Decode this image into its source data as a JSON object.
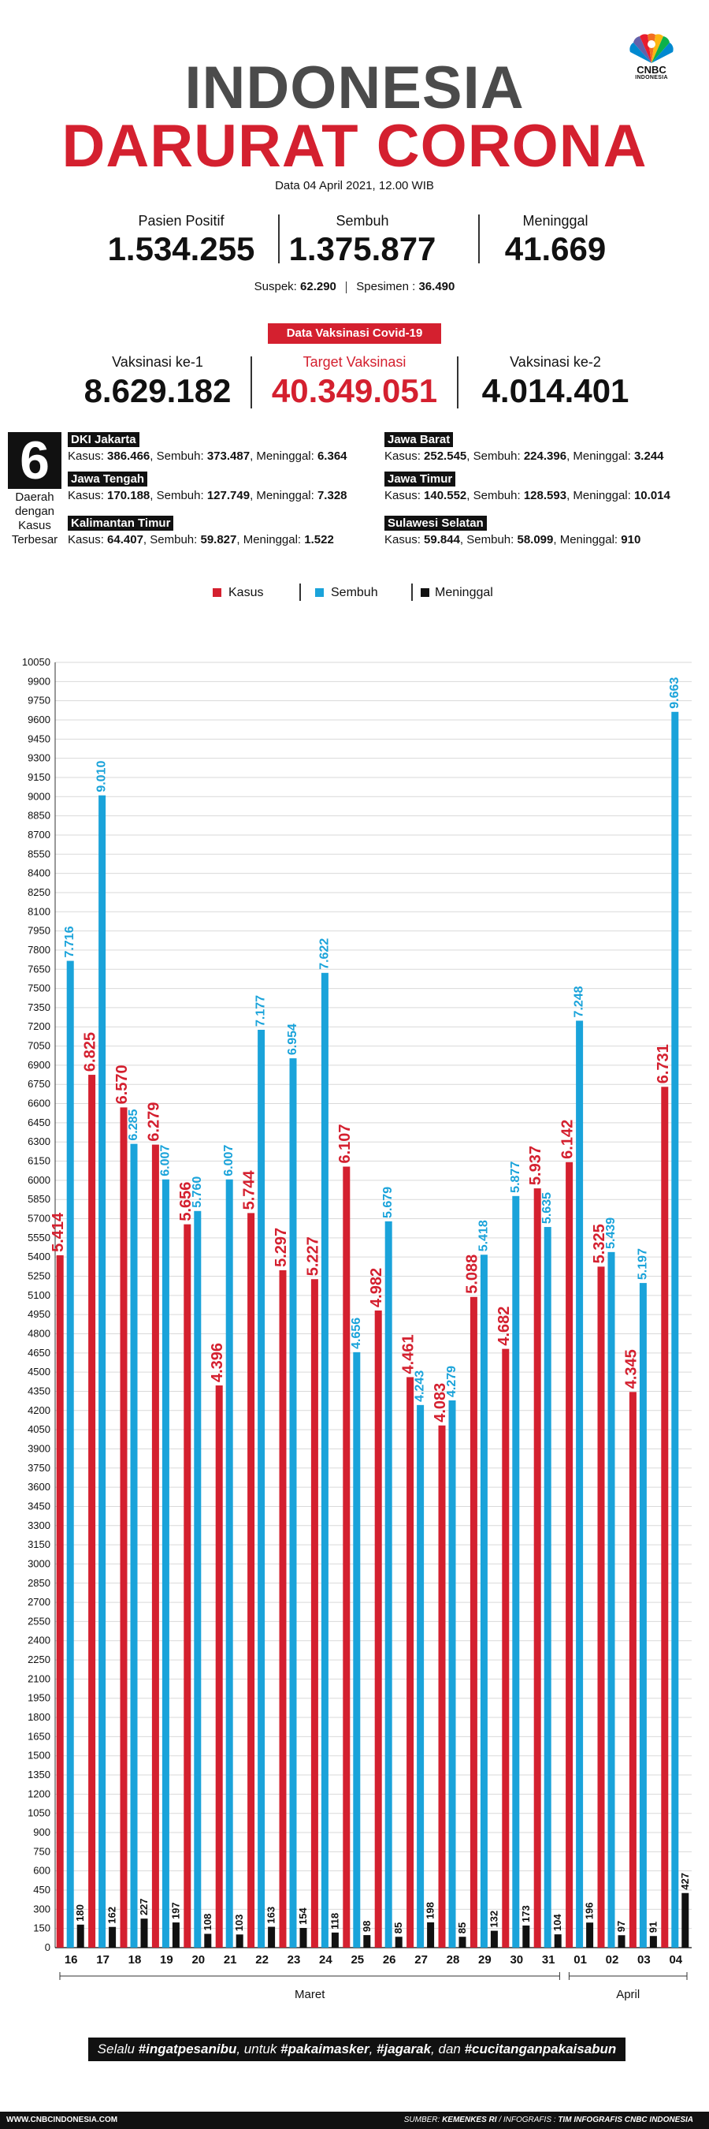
{
  "brand": {
    "logo_text": "CNBC",
    "logo_sub": "INDONESIA"
  },
  "title": {
    "line1": "INDONESIA",
    "line2": "DARURAT CORONA"
  },
  "date": "Data 04 April 2021, 12.00 WIB",
  "stats": {
    "positive_label": "Pasien Positif",
    "positive_value": "1.534.255",
    "recovered_label": "Sembuh",
    "recovered_value": "1.375.877",
    "deaths_label": "Meninggal",
    "deaths_value": "41.669"
  },
  "sub": {
    "suspek_label": "Suspek:",
    "suspek_value": "62.290",
    "spesimen_label": "Spesimen :",
    "spesimen_value": "36.490"
  },
  "vaccination": {
    "tag": "Data Vaksinasi Covid-19",
    "first_label": "Vaksinasi ke-1",
    "first_value": "8.629.182",
    "target_label": "Target Vaksinasi",
    "target_value": "40.349.051",
    "second_label": "Vaksinasi ke-2",
    "second_value": "4.014.401"
  },
  "regions": {
    "count": "6",
    "caption": "Daerah dengan Kasus Terbesar",
    "items": [
      {
        "name": "DKI Jakarta",
        "kasus": "386.466",
        "sembuh": "373.487",
        "meninggal": "6.364"
      },
      {
        "name": "Jawa Barat",
        "kasus": "252.545",
        "sembuh": "224.396",
        "meninggal": "3.244"
      },
      {
        "name": "Jawa Tengah",
        "kasus": "170.188",
        "sembuh": "127.749",
        "meninggal": "7.328"
      },
      {
        "name": "Jawa Timur",
        "kasus": "140.552",
        "sembuh": "128.593",
        "meninggal": "10.014"
      },
      {
        "name": "Kalimantan Timur",
        "kasus": "64.407",
        "sembuh": "59.827",
        "meninggal": "1.522"
      },
      {
        "name": "Sulawesi Selatan",
        "kasus": "59.844",
        "sembuh": "58.099",
        "meninggal": "910"
      }
    ],
    "kasus_label": "Kasus:",
    "sembuh_label": "Sembuh:",
    "meninggal_label": "Meninggal:"
  },
  "colors": {
    "kasus": "#d4202f",
    "sembuh": "#1aa3da",
    "meninggal": "#111111",
    "grid": "#d9d9d9"
  },
  "chart_data": {
    "type": "bar",
    "categories": [
      "16",
      "17",
      "18",
      "19",
      "20",
      "21",
      "22",
      "23",
      "24",
      "25",
      "26",
      "27",
      "28",
      "29",
      "30",
      "31",
      "01",
      "02",
      "03",
      "04"
    ],
    "month_groups": [
      {
        "label": "Maret",
        "from": "16",
        "to": "31"
      },
      {
        "label": "April",
        "from": "01",
        "to": "04"
      }
    ],
    "series": [
      {
        "name": "Kasus",
        "values": [
          5414,
          6825,
          6570,
          6279,
          5656,
          4396,
          5744,
          5297,
          5227,
          6107,
          4982,
          4461,
          4083,
          5088,
          4682,
          5937,
          6142,
          5325,
          4345,
          6731
        ],
        "labels": [
          "5.414",
          "6.825",
          "6.570",
          "6.279",
          "5.656",
          "4.396",
          "5.744",
          "5.297",
          "5.227",
          "6.107",
          "4.982",
          "4.461",
          "4.083",
          "5.088",
          "4.682",
          "5.937",
          "6.142",
          "5.325",
          "4.345",
          "6.731"
        ]
      },
      {
        "name": "Sembuh",
        "values": [
          7716,
          9010,
          6285,
          6007,
          5760,
          6007,
          7177,
          6954,
          7622,
          4656,
          5679,
          4243,
          4279,
          5418,
          5877,
          5635,
          7248,
          5439,
          5197,
          9663
        ],
        "labels": [
          "7.716",
          "9.010",
          "6.285",
          "6.007",
          "5.760",
          "6.007",
          "7.177",
          "6.954",
          "7.622",
          "4.656",
          "5.679",
          "4.243",
          "4.279",
          "5.418",
          "5.877",
          "5.635",
          "7.248",
          "5.439",
          "5.197",
          "9.663"
        ]
      },
      {
        "name": "Meninggal",
        "values": [
          180,
          162,
          227,
          197,
          108,
          103,
          163,
          154,
          118,
          98,
          85,
          198,
          85,
          132,
          173,
          104,
          196,
          97,
          91,
          427
        ],
        "labels": [
          "180",
          "162",
          "227",
          "197",
          "108",
          "103",
          "163",
          "154",
          "118",
          "98",
          "85",
          "198",
          "85",
          "132",
          "173",
          "104",
          "196",
          "97",
          "91",
          "427"
        ]
      }
    ],
    "ylim": [
      0,
      10050
    ],
    "yticks": [
      0,
      150,
      300,
      450,
      600,
      750,
      900,
      1050,
      1200,
      1350,
      1500,
      1650,
      1800,
      1950,
      2100,
      2250,
      2400,
      2550,
      2700,
      2850,
      3000,
      3150,
      3300,
      3450,
      3600,
      3750,
      3900,
      4050,
      4200,
      4350,
      4500,
      4650,
      4800,
      4950,
      5100,
      5250,
      5400,
      5550,
      5700,
      5850,
      6000,
      6150,
      6300,
      6450,
      6600,
      6750,
      6900,
      7050,
      7200,
      7350,
      7500,
      7650,
      7800,
      7950,
      8100,
      8250,
      8400,
      8550,
      8700,
      8850,
      9000,
      9150,
      9300,
      9450,
      9600,
      9750,
      9900,
      10050
    ],
    "grid": true,
    "legend": "top-center"
  },
  "footer": {
    "pre": "Selalu ",
    "t1": "#ingatpesanibu",
    "mid1": ", untuk ",
    "t2": "#pakaimasker",
    "mid2": ", ",
    "t3": "#jagarak",
    "mid3": ", dan ",
    "t4": "#cucitanganpakaisabun"
  },
  "source": {
    "site": "WWW.CNBCINDONESIA.COM",
    "credit_label": "SUMBER:",
    "credit_value": "KEMENKES RI",
    "info_label": "/ INFOGRAFIS :",
    "info_value": "TIM INFOGRAFIS CNBC INDONESIA"
  }
}
